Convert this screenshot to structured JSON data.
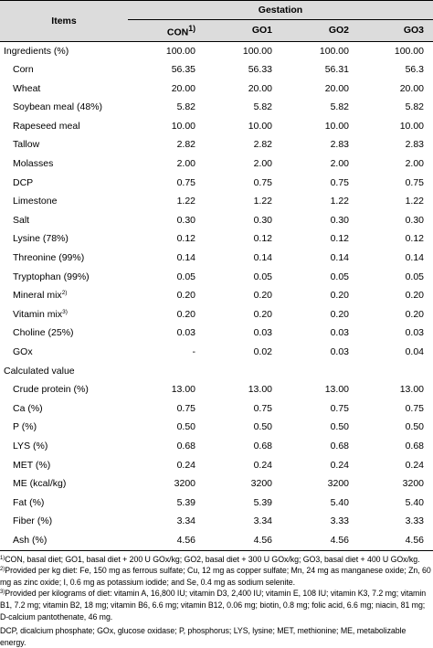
{
  "header": {
    "items": "Items",
    "gestation": "Gestation",
    "columns": [
      {
        "label": "CON",
        "sup": "1)"
      },
      {
        "label": "GO1",
        "sup": ""
      },
      {
        "label": "GO2",
        "sup": ""
      },
      {
        "label": "GO3",
        "sup": ""
      }
    ]
  },
  "rows": [
    {
      "label": "Ingredients (%)",
      "sup": "",
      "section": true,
      "values": [
        "100.00",
        "100.00",
        "100.00",
        "100.00"
      ]
    },
    {
      "label": "Corn",
      "sup": "",
      "section": false,
      "values": [
        "56.35",
        "56.33",
        "56.31",
        "56.3"
      ]
    },
    {
      "label": "Wheat",
      "sup": "",
      "section": false,
      "values": [
        "20.00",
        "20.00",
        "20.00",
        "20.00"
      ]
    },
    {
      "label": "Soybean meal (48%)",
      "sup": "",
      "section": false,
      "values": [
        "5.82",
        "5.82",
        "5.82",
        "5.82"
      ]
    },
    {
      "label": "Rapeseed meal",
      "sup": "",
      "section": false,
      "values": [
        "10.00",
        "10.00",
        "10.00",
        "10.00"
      ]
    },
    {
      "label": "Tallow",
      "sup": "",
      "section": false,
      "values": [
        "2.82",
        "2.82",
        "2.83",
        "2.83"
      ]
    },
    {
      "label": "Molasses",
      "sup": "",
      "section": false,
      "values": [
        "2.00",
        "2.00",
        "2.00",
        "2.00"
      ]
    },
    {
      "label": "DCP",
      "sup": "",
      "section": false,
      "values": [
        "0.75",
        "0.75",
        "0.75",
        "0.75"
      ]
    },
    {
      "label": "Limestone",
      "sup": "",
      "section": false,
      "values": [
        "1.22",
        "1.22",
        "1.22",
        "1.22"
      ]
    },
    {
      "label": "Salt",
      "sup": "",
      "section": false,
      "values": [
        "0.30",
        "0.30",
        "0.30",
        "0.30"
      ]
    },
    {
      "label": "Lysine (78%)",
      "sup": "",
      "section": false,
      "values": [
        "0.12",
        "0.12",
        "0.12",
        "0.12"
      ]
    },
    {
      "label": "Threonine (99%)",
      "sup": "",
      "section": false,
      "values": [
        "0.14",
        "0.14",
        "0.14",
        "0.14"
      ]
    },
    {
      "label": "Tryptophan (99%)",
      "sup": "",
      "section": false,
      "values": [
        "0.05",
        "0.05",
        "0.05",
        "0.05"
      ]
    },
    {
      "label": "Mineral mix",
      "sup": "2)",
      "section": false,
      "values": [
        "0.20",
        "0.20",
        "0.20",
        "0.20"
      ]
    },
    {
      "label": "Vitamin mix",
      "sup": "3)",
      "section": false,
      "values": [
        "0.20",
        "0.20",
        "0.20",
        "0.20"
      ]
    },
    {
      "label": "Choline (25%)",
      "sup": "",
      "section": false,
      "values": [
        "0.03",
        "0.03",
        "0.03",
        "0.03"
      ]
    },
    {
      "label": "GOx",
      "sup": "",
      "section": false,
      "values": [
        "-",
        "0.02",
        "0.03",
        "0.04"
      ]
    },
    {
      "label": "Calculated value",
      "sup": "",
      "section": true,
      "values": [
        "",
        "",
        "",
        ""
      ]
    },
    {
      "label": "Crude protein (%)",
      "sup": "",
      "section": false,
      "values": [
        "13.00",
        "13.00",
        "13.00",
        "13.00"
      ]
    },
    {
      "label": "Ca (%)",
      "sup": "",
      "section": false,
      "values": [
        "0.75",
        "0.75",
        "0.75",
        "0.75"
      ]
    },
    {
      "label": "P (%)",
      "sup": "",
      "section": false,
      "values": [
        "0.50",
        "0.50",
        "0.50",
        "0.50"
      ]
    },
    {
      "label": "LYS (%)",
      "sup": "",
      "section": false,
      "values": [
        "0.68",
        "0.68",
        "0.68",
        "0.68"
      ]
    },
    {
      "label": "MET (%)",
      "sup": "",
      "section": false,
      "values": [
        "0.24",
        "0.24",
        "0.24",
        "0.24"
      ]
    },
    {
      "label": "ME (kcal/kg)",
      "sup": "",
      "section": false,
      "values": [
        "3200",
        "3200",
        "3200",
        "3200"
      ]
    },
    {
      "label": "Fat (%)",
      "sup": "",
      "section": false,
      "values": [
        "5.39",
        "5.39",
        "5.40",
        "5.40"
      ]
    },
    {
      "label": "Fiber (%)",
      "sup": "",
      "section": false,
      "values": [
        "3.34",
        "3.34",
        "3.33",
        "3.33"
      ]
    },
    {
      "label": "Ash (%)",
      "sup": "",
      "section": false,
      "values": [
        "4.56",
        "4.56",
        "4.56",
        "4.56"
      ]
    }
  ],
  "footnotes": [
    {
      "sup": "1)",
      "text": "CON, basal diet; GO1, basal diet + 200 U GOx/kg; GO2, basal diet + 300 U GOx/kg; GO3, basal diet + 400 U GOx/kg."
    },
    {
      "sup": "2)",
      "text": "Provided per kg diet: Fe, 150 mg as ferrous sulfate; Cu, 12 mg as copper sulfate; Mn, 24 mg as manganese oxide; Zn, 60 mg as zinc oxide; I, 0.6 mg as potassium iodide; and Se, 0.4 mg as sodium selenite."
    },
    {
      "sup": "3)",
      "text": "Provided per kilograms of diet: vitamin A, 16,800 IU; vitamin D3, 2,400 IU; vitamin E, 108 IU; vitamin K3, 7.2 mg; vitamin B1, 7.2 mg; vitamin B2, 18 mg; vitamin B6, 6.6 mg; vitamin B12, 0.06 mg; biotin, 0.8 mg; folic acid, 6.6 mg; niacin, 81 mg; D-calcium pantothenate, 46 mg."
    }
  ],
  "abbreviations": "DCP, dicalcium phosphate; GOx, glucose oxidase; P, phosphorus; LYS, lysine; MET, methionine; ME, metabolizable energy."
}
